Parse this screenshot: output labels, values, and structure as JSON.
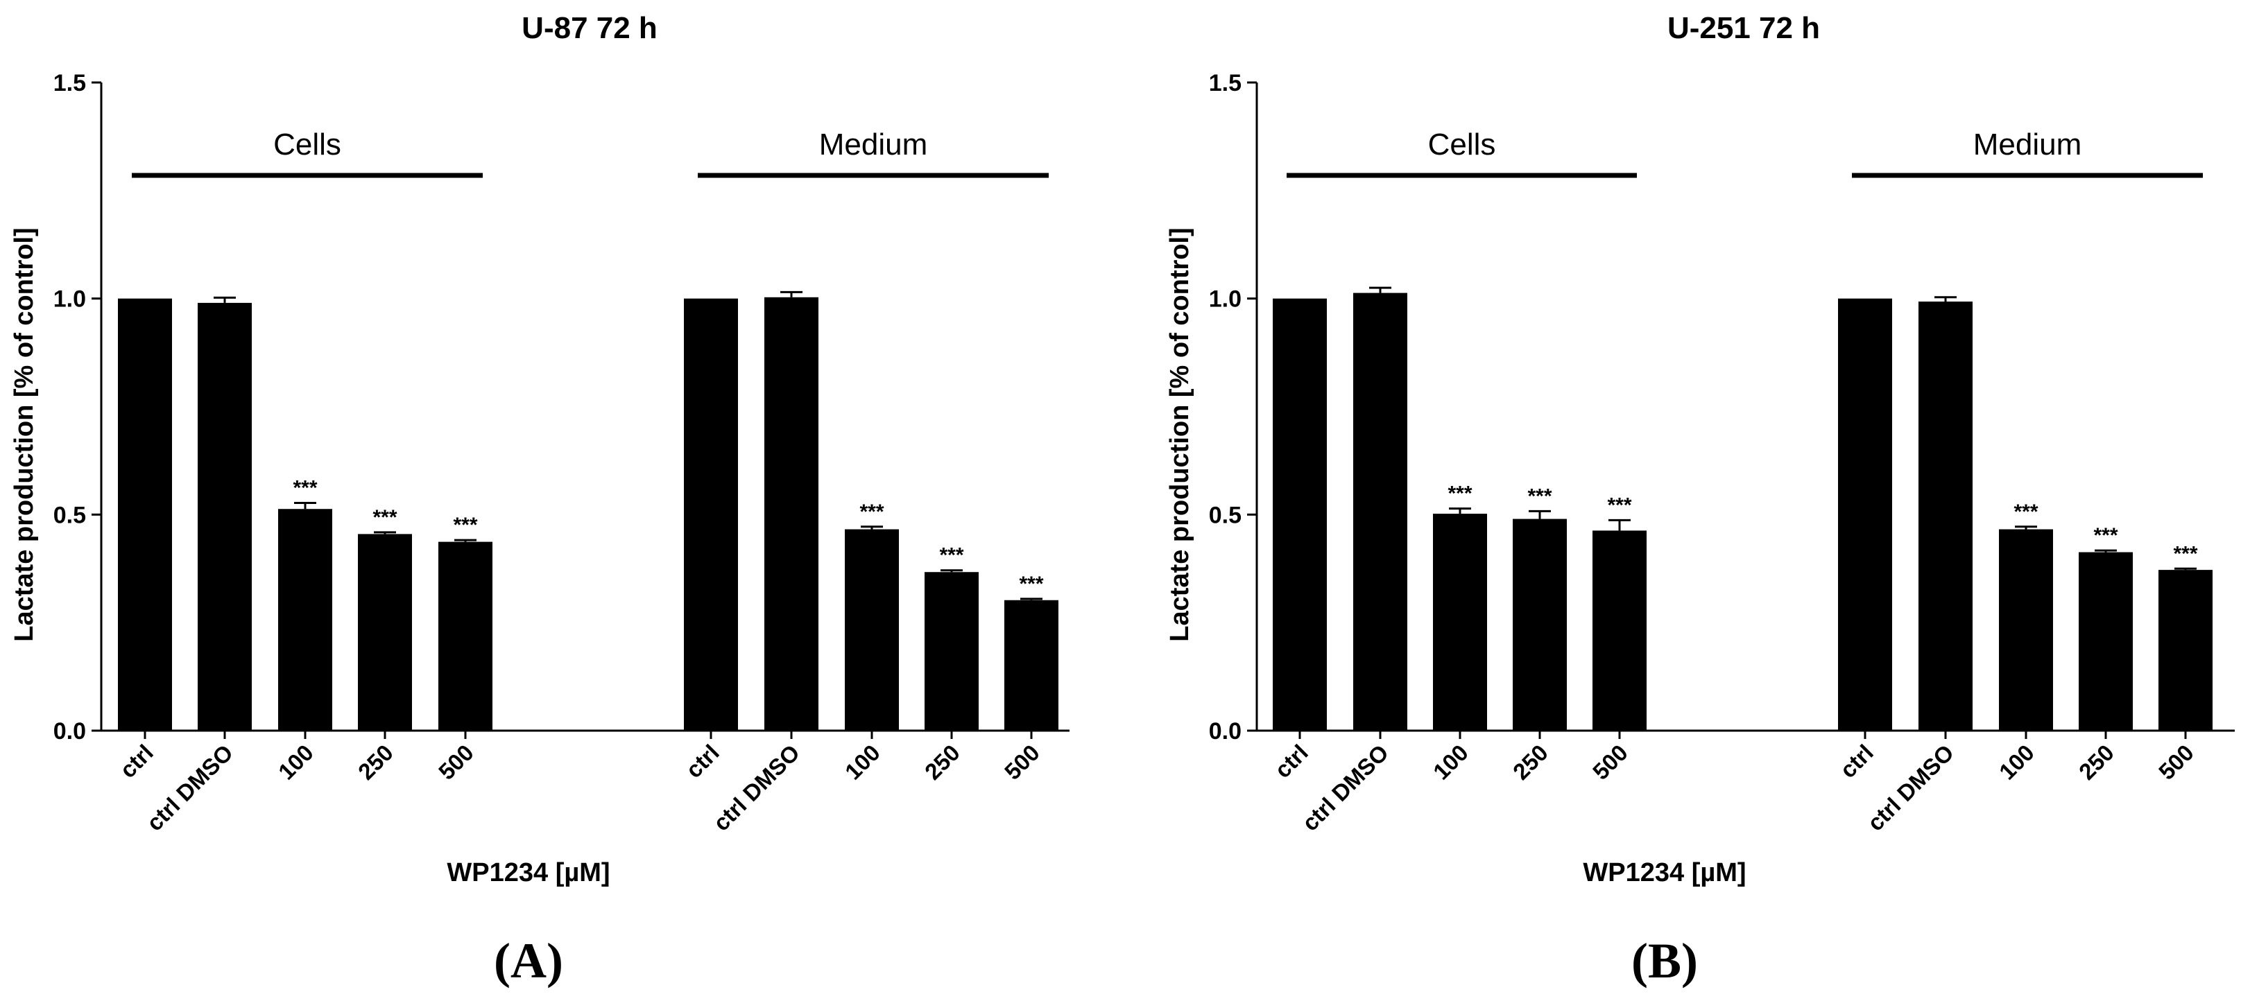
{
  "colors": {
    "bar": "#000000",
    "axis": "#000000",
    "background": "#ffffff"
  },
  "chart_data": [
    {
      "type": "bar",
      "panel_label": "(A)",
      "title": "U-87 72 h",
      "xlabel": "WP1234 [µM]",
      "ylabel": "Lactate production [% of control]",
      "ylim": [
        0,
        1.5
      ],
      "yticks": [
        "0.0",
        "0.5",
        "1.0",
        "1.5"
      ],
      "categories": [
        "ctrl",
        "ctrl DMSO",
        "100",
        "250",
        "500",
        "ctrl",
        "ctrl DMSO",
        "100",
        "250",
        "500"
      ],
      "values": [
        1.0,
        0.99,
        0.513,
        0.455,
        0.437,
        1.0,
        1.003,
        0.466,
        0.367,
        0.302
      ],
      "errors": [
        0.0,
        0.012,
        0.014,
        0.004,
        0.004,
        0.0,
        0.012,
        0.006,
        0.004,
        0.003
      ],
      "significance": [
        "",
        "",
        "***",
        "***",
        "***",
        "",
        "",
        "***",
        "***",
        "***"
      ],
      "groups": [
        {
          "label": "Cells",
          "start": 0,
          "end": 4
        },
        {
          "label": "Medium",
          "start": 5,
          "end": 9
        }
      ]
    },
    {
      "type": "bar",
      "panel_label": "(B)",
      "title": "U-251 72 h",
      "xlabel": "WP1234 [µM]",
      "ylabel": "Lactate production [% of control]",
      "ylim": [
        0,
        1.5
      ],
      "yticks": [
        "0.0",
        "0.5",
        "1.0",
        "1.5"
      ],
      "categories": [
        "ctrl",
        "ctrl DMSO",
        "100",
        "250",
        "500",
        "ctrl",
        "ctrl DMSO",
        "100",
        "250",
        "500"
      ],
      "values": [
        1.0,
        1.013,
        0.502,
        0.49,
        0.463,
        1.0,
        0.993,
        0.466,
        0.413,
        0.372
      ],
      "errors": [
        0.0,
        0.012,
        0.012,
        0.018,
        0.024,
        0.0,
        0.01,
        0.006,
        0.004,
        0.003
      ],
      "significance": [
        "",
        "",
        "***",
        "***",
        "***",
        "",
        "",
        "***",
        "***",
        "***"
      ],
      "groups": [
        {
          "label": "Cells",
          "start": 0,
          "end": 4
        },
        {
          "label": "Medium",
          "start": 5,
          "end": 9
        }
      ]
    }
  ]
}
